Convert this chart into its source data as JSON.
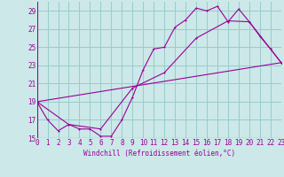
{
  "title": "",
  "xlabel": "Windchill (Refroidissement éolien,°C)",
  "background_color": "#cce8e8",
  "grid_color": "#99cccc",
  "line_color": "#990099",
  "xlim": [
    0,
    23
  ],
  "ylim": [
    15,
    30
  ],
  "yticks": [
    15,
    17,
    19,
    21,
    23,
    25,
    27,
    29
  ],
  "xticks": [
    0,
    1,
    2,
    3,
    4,
    5,
    6,
    7,
    8,
    9,
    10,
    11,
    12,
    13,
    14,
    15,
    16,
    17,
    18,
    19,
    20,
    21,
    22,
    23
  ],
  "line1_x": [
    0,
    1,
    2,
    3,
    4,
    5,
    6,
    7,
    8,
    9,
    10,
    11,
    12,
    13,
    14,
    15,
    16,
    17,
    18,
    19,
    20,
    21,
    22,
    23
  ],
  "line1_y": [
    19,
    17,
    15.8,
    16.5,
    16,
    16,
    15.2,
    15.2,
    17.0,
    19.5,
    22.5,
    24.8,
    25.0,
    27.2,
    28.0,
    29.3,
    29.0,
    29.5,
    27.8,
    29.2,
    27.8,
    26.2,
    24.8,
    23.3
  ],
  "line2_x": [
    0,
    3,
    6,
    9,
    12,
    15,
    18,
    20,
    22,
    23
  ],
  "line2_y": [
    19,
    16.5,
    16.0,
    20.5,
    22.2,
    26.0,
    27.9,
    27.8,
    24.8,
    23.3
  ],
  "line3_x": [
    0,
    23
  ],
  "line3_y": [
    19,
    23.3
  ]
}
